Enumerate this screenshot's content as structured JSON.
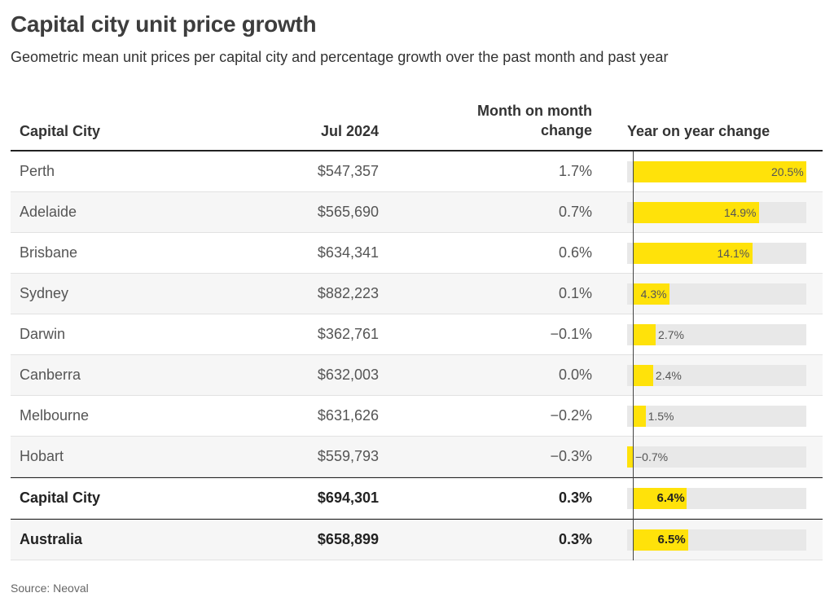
{
  "title": "Capital city unit price growth",
  "subtitle": "Geometric mean unit prices per capital city and percentage growth over the past month and past year",
  "headers": {
    "city": "Capital City",
    "price": "Jul 2024",
    "mom_line1": "Month on month",
    "mom_line2": "change",
    "yoy": "Year on year change"
  },
  "colors": {
    "bar": "#ffe20a",
    "track": "#e8e8e8",
    "zebra": "#f6f6f6",
    "rule": "#222222"
  },
  "source": "Source: Neoval",
  "chart_data": {
    "type": "table",
    "columns": [
      "Capital City",
      "Jul 2024",
      "Month on month change",
      "Year on year change"
    ],
    "bar_column": "Year on year change",
    "yoy_axis_range": [
      -0.7,
      20.5
    ],
    "rows": [
      {
        "city": "Perth",
        "price": "$547,357",
        "mom": "1.7%",
        "yoy": 20.5,
        "yoy_label": "20.5%",
        "total": false
      },
      {
        "city": "Adelaide",
        "price": "$565,690",
        "mom": "0.7%",
        "yoy": 14.9,
        "yoy_label": "14.9%",
        "total": false
      },
      {
        "city": "Brisbane",
        "price": "$634,341",
        "mom": "0.6%",
        "yoy": 14.1,
        "yoy_label": "14.1%",
        "total": false
      },
      {
        "city": "Sydney",
        "price": "$882,223",
        "mom": "0.1%",
        "yoy": 4.3,
        "yoy_label": "4.3%",
        "total": false
      },
      {
        "city": "Darwin",
        "price": "$362,761",
        "mom": "−0.1%",
        "yoy": 2.7,
        "yoy_label": "2.7%",
        "total": false
      },
      {
        "city": "Canberra",
        "price": "$632,003",
        "mom": "0.0%",
        "yoy": 2.4,
        "yoy_label": "2.4%",
        "total": false
      },
      {
        "city": "Melbourne",
        "price": "$631,626",
        "mom": "−0.2%",
        "yoy": 1.5,
        "yoy_label": "1.5%",
        "total": false
      },
      {
        "city": "Hobart",
        "price": "$559,793",
        "mom": "−0.3%",
        "yoy": -0.7,
        "yoy_label": "−0.7%",
        "total": false
      },
      {
        "city": "Capital City",
        "price": "$694,301",
        "mom": "0.3%",
        "yoy": 6.4,
        "yoy_label": "6.4%",
        "total": true
      },
      {
        "city": "Australia",
        "price": "$658,899",
        "mom": "0.3%",
        "yoy": 6.5,
        "yoy_label": "6.5%",
        "total": true
      }
    ]
  }
}
